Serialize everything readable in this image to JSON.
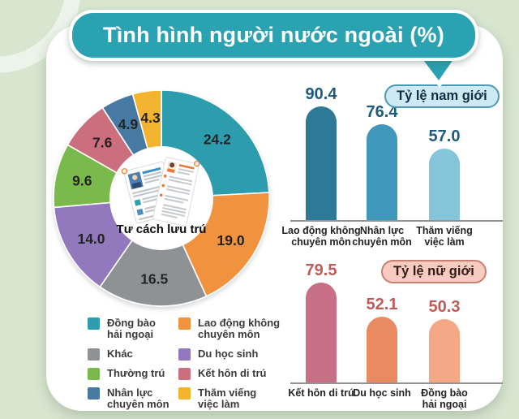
{
  "title": "Tình hình người nước ngoài (%)",
  "colors": {
    "background": "#d8e6d0",
    "card": "#ffffff",
    "banner": "#2aa2b1",
    "banner_border": "#ffffff",
    "baseline": "#8f9497",
    "male_badge_bg": "#cfe9f4",
    "male_badge_border": "#4e9ab5",
    "female_badge_bg": "#f7cbc0",
    "female_badge_border": "#c97f71"
  },
  "chart_data": [
    {
      "type": "pie",
      "donut": true,
      "title": "Tư cách lưu trú",
      "labels": [
        "Đồng bào hải ngoại",
        "Lao động không chuyên môn",
        "Khác",
        "Du học sinh",
        "Thường trú",
        "Kết hôn di trú",
        "Nhân lực chuyên môn",
        "Thăm viếng việc làm"
      ],
      "values": [
        24.2,
        19.0,
        16.5,
        14.0,
        9.6,
        7.6,
        4.9,
        4.3
      ],
      "colors": [
        "#2d9dae",
        "#f0923e",
        "#8f9294",
        "#9279bd",
        "#7aba4c",
        "#cb6e7e",
        "#4779a2",
        "#f3b32f"
      ],
      "start_angle_deg": 0,
      "direction": "clockwise"
    },
    {
      "type": "bar",
      "title": "Tỷ lệ nam giới",
      "categories": [
        "Lao động không chuyên môn",
        "Nhân lực chuyên môn",
        "Thăm viếng việc làm"
      ],
      "category_lines": [
        [
          "Lao động không",
          "chuyên môn"
        ],
        [
          "Nhân lực",
          "chuyên môn"
        ],
        [
          "Thăm viếng",
          "việc làm"
        ]
      ],
      "values": [
        90.4,
        76.4,
        57.0
      ],
      "colors": [
        "#2e7996",
        "#3f98bb",
        "#85c5da"
      ],
      "value_color": "#1e5b7a",
      "ylim": [
        0,
        100
      ]
    },
    {
      "type": "bar",
      "title": "Tỷ lệ nữ giới",
      "categories": [
        "Kết hôn di trú",
        "Du học sinh",
        "Đồng bào hải ngoại"
      ],
      "category_lines": [
        [
          "Kết hôn di trú"
        ],
        [
          "Du học sinh"
        ],
        [
          "Đồng bào",
          "hải ngoại"
        ]
      ],
      "values": [
        79.5,
        52.1,
        50.3
      ],
      "colors": [
        "#c77085",
        "#e98a63",
        "#f5a885"
      ],
      "value_color": "#c05a58",
      "ylim": [
        0,
        100
      ]
    }
  ],
  "legend": {
    "columns": [
      [
        {
          "color": "#2d9dae",
          "lines": [
            "Đồng bào",
            "hải ngoại"
          ]
        },
        {
          "color": "#8f9294",
          "lines": [
            "Khác"
          ]
        },
        {
          "color": "#7aba4c",
          "lines": [
            "Thường trú"
          ]
        },
        {
          "color": "#4779a2",
          "lines": [
            "Nhân lực",
            "chuyên môn"
          ]
        }
      ],
      [
        {
          "color": "#f0923e",
          "lines": [
            "Lao động không",
            "chuyên môn"
          ]
        },
        {
          "color": "#9279bd",
          "lines": [
            "Du học sinh"
          ]
        },
        {
          "color": "#cb6e7e",
          "lines": [
            "Kết hôn di trú"
          ]
        },
        {
          "color": "#f3b32f",
          "lines": [
            "Thăm viếng",
            "việc làm"
          ]
        }
      ]
    ]
  }
}
